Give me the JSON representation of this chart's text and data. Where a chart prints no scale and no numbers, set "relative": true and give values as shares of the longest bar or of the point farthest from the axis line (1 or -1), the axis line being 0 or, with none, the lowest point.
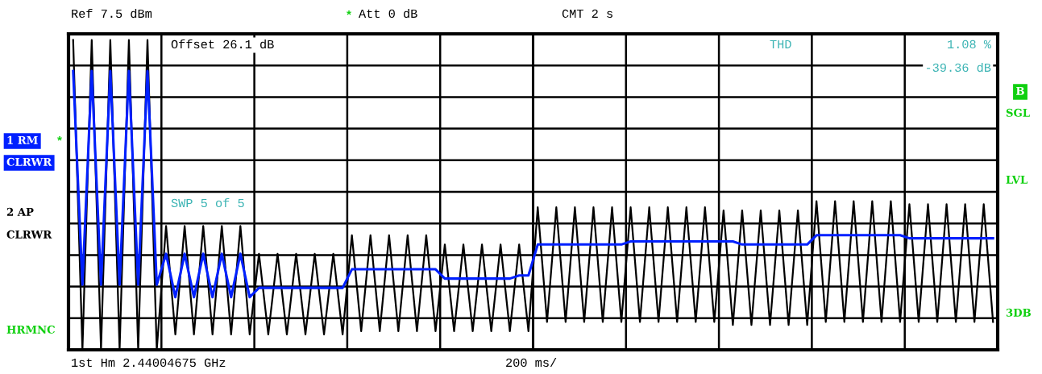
{
  "chart_data": {
    "type": "line",
    "relative": true,
    "grid": true,
    "categories": [
      null,
      null,
      null,
      null,
      null,
      null,
      null,
      null,
      null,
      null,
      null,
      null,
      null,
      null,
      null,
      null,
      null,
      null,
      null,
      null,
      null,
      null,
      null,
      null,
      null,
      null,
      null,
      null,
      null,
      null,
      null,
      null,
      null,
      null,
      null,
      null,
      null,
      null,
      null,
      null,
      null,
      null,
      null,
      null,
      null,
      null,
      null,
      null,
      null,
      null,
      null,
      null,
      null,
      null,
      null,
      null,
      null,
      null,
      null,
      null,
      null,
      null,
      null,
      null,
      null,
      null,
      null,
      null,
      null,
      null,
      null,
      null,
      null,
      null,
      null,
      null,
      null,
      null,
      null,
      null,
      null,
      null,
      null,
      null,
      null,
      null,
      null,
      null,
      null,
      null,
      null,
      null,
      null,
      null,
      null,
      null,
      null,
      null,
      null,
      null
    ],
    "series": [
      {
        "color": "#000000",
        "values": [
          1.0,
          0.0,
          1.0,
          0.0,
          1.0,
          0.0,
          1.0,
          0.0,
          1.0,
          0.0,
          0.4,
          0.05,
          0.4,
          0.05,
          0.4,
          0.05,
          0.4,
          0.05,
          0.4,
          0.05,
          0.31,
          0.05,
          0.31,
          0.05,
          0.31,
          0.05,
          0.31,
          0.05,
          0.31,
          0.05,
          0.37,
          0.06,
          0.37,
          0.06,
          0.37,
          0.06,
          0.37,
          0.06,
          0.37,
          0.06,
          0.34,
          0.06,
          0.34,
          0.06,
          0.34,
          0.06,
          0.34,
          0.06,
          0.34,
          0.06,
          0.46,
          0.09,
          0.46,
          0.09,
          0.46,
          0.09,
          0.46,
          0.09,
          0.46,
          0.09,
          0.46,
          0.09,
          0.46,
          0.09,
          0.46,
          0.09,
          0.46,
          0.09,
          0.46,
          0.09,
          0.45,
          0.08,
          0.45,
          0.08,
          0.45,
          0.08,
          0.45,
          0.08,
          0.45,
          0.08,
          0.48,
          0.09,
          0.48,
          0.09,
          0.48,
          0.09,
          0.48,
          0.09,
          0.48,
          0.09,
          0.47,
          0.09,
          0.47,
          0.09,
          0.47,
          0.09,
          0.47,
          0.09,
          0.47,
          0.09
        ]
      },
      {
        "color": "#0020ff",
        "values": [
          0.9,
          0.21,
          0.9,
          0.21,
          0.9,
          0.21,
          0.9,
          0.21,
          0.9,
          0.21,
          0.31,
          0.17,
          0.31,
          0.17,
          0.31,
          0.17,
          0.31,
          0.17,
          0.31,
          0.17,
          0.2,
          0.2,
          0.2,
          0.2,
          0.2,
          0.2,
          0.2,
          0.2,
          0.2,
          0.2,
          0.26,
          0.26,
          0.26,
          0.26,
          0.26,
          0.26,
          0.26,
          0.26,
          0.26,
          0.26,
          0.23,
          0.23,
          0.23,
          0.23,
          0.23,
          0.23,
          0.23,
          0.23,
          0.24,
          0.24,
          0.34,
          0.34,
          0.34,
          0.34,
          0.34,
          0.34,
          0.34,
          0.34,
          0.34,
          0.34,
          0.35,
          0.35,
          0.35,
          0.35,
          0.35,
          0.35,
          0.35,
          0.35,
          0.35,
          0.35,
          0.35,
          0.35,
          0.34,
          0.34,
          0.34,
          0.34,
          0.34,
          0.34,
          0.34,
          0.34,
          0.37,
          0.37,
          0.37,
          0.37,
          0.37,
          0.37,
          0.37,
          0.37,
          0.37,
          0.37,
          0.36,
          0.36,
          0.36,
          0.36,
          0.36,
          0.36,
          0.36,
          0.36,
          0.36,
          0.36
        ]
      }
    ],
    "annotations": [
      "Ref 7.5 dBm",
      "Att 0 dB",
      "*",
      "CMT 2 s",
      "1st Hm 2.44004675 GHz",
      "200 ms/",
      "1 RM",
      "*",
      "CLRWR",
      "2 AP",
      "CLRWR",
      "HRMNC",
      "B",
      "SGL",
      "LVL",
      "3DB",
      "Offset 26.1 dB",
      "SWP 5 of 5",
      "THD",
      "1.08 %",
      "-39.36 dB"
    ]
  }
}
